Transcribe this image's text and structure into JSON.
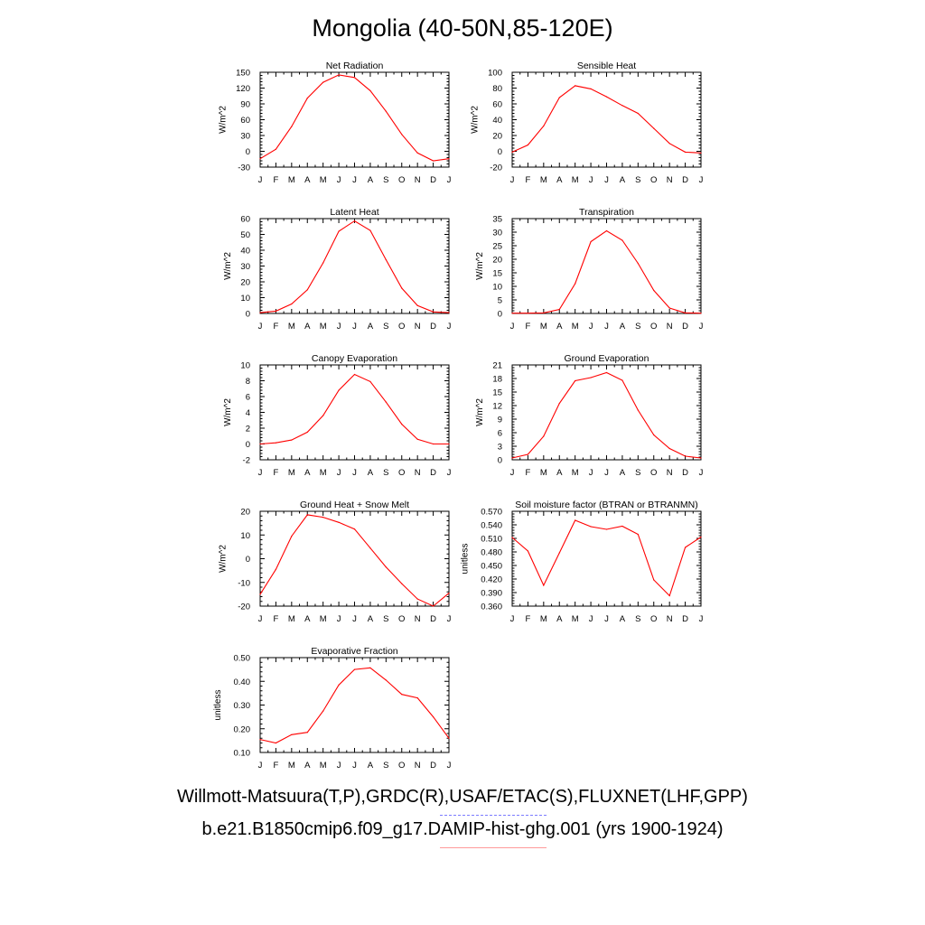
{
  "title": "Mongolia (40-50N,85-120E)",
  "legend": {
    "observations": "Willmott-Matsuura(T,P),GRDC(R),USAF/ETAC(S),FLUXNET(LHF,GPP)",
    "model": "b.e21.B1850cmip6.f09_g17.DAMIP-hist-ghg.001 (yrs 1900-1924)",
    "observations_color": "#7b7bff",
    "model_color": "#ff0000"
  },
  "chart_data": [
    {
      "type": "line",
      "title": "Net Radiation",
      "ylabel": "W/m^2",
      "categories": [
        "J",
        "F",
        "M",
        "A",
        "M",
        "J",
        "J",
        "A",
        "S",
        "O",
        "N",
        "D",
        "J"
      ],
      "yticks": [
        "150",
        "120",
        "90",
        "60",
        "30",
        "0",
        "-30"
      ],
      "ylim": [
        -30,
        150
      ],
      "series": [
        {
          "values": [
            -14,
            4,
            47,
            101,
            131,
            145,
            140,
            115,
            76,
            32,
            -3,
            -18,
            -14
          ]
        }
      ]
    },
    {
      "type": "line",
      "title": "Sensible Heat",
      "ylabel": "W/m^2",
      "categories": [
        "J",
        "F",
        "M",
        "A",
        "M",
        "J",
        "J",
        "A",
        "S",
        "O",
        "N",
        "D",
        "J"
      ],
      "yticks": [
        "100",
        "80",
        "60",
        "40",
        "20",
        "0",
        "-20"
      ],
      "ylim": [
        -20,
        100
      ],
      "series": [
        {
          "values": [
            -1,
            8,
            32,
            68,
            83,
            79,
            69,
            58,
            48,
            29,
            10,
            -1,
            -2
          ]
        }
      ]
    },
    {
      "type": "line",
      "title": "Latent Heat",
      "ylabel": "W/m^2",
      "categories": [
        "J",
        "F",
        "M",
        "A",
        "M",
        "J",
        "J",
        "A",
        "S",
        "O",
        "N",
        "D",
        "J"
      ],
      "yticks": [
        "60",
        "50",
        "40",
        "30",
        "20",
        "10",
        "0"
      ],
      "ylim": [
        0,
        60
      ],
      "series": [
        {
          "values": [
            0.5,
            1.5,
            6,
            15,
            32,
            52,
            58.5,
            52.5,
            34,
            16,
            5,
            1,
            0.5
          ]
        }
      ]
    },
    {
      "type": "line",
      "title": "Transpiration",
      "ylabel": "W/m^2",
      "categories": [
        "J",
        "F",
        "M",
        "A",
        "M",
        "J",
        "J",
        "A",
        "S",
        "O",
        "N",
        "D",
        "J"
      ],
      "yticks": [
        "35",
        "30",
        "25",
        "20",
        "15",
        "10",
        "5",
        "0"
      ],
      "ylim": [
        0,
        35
      ],
      "series": [
        {
          "values": [
            0.1,
            0.1,
            0.2,
            1.5,
            11,
            26.5,
            30.5,
            27,
            18.5,
            8.5,
            2,
            0.2,
            0.1
          ]
        }
      ]
    },
    {
      "type": "line",
      "title": "Canopy Evaporation",
      "ylabel": "W/m^2",
      "categories": [
        "J",
        "F",
        "M",
        "A",
        "M",
        "J",
        "J",
        "A",
        "S",
        "O",
        "N",
        "D",
        "J"
      ],
      "yticks": [
        "10",
        "8",
        "6",
        "4",
        "2",
        "0",
        "-2"
      ],
      "ylim": [
        -2,
        10
      ],
      "series": [
        {
          "values": [
            0,
            0.15,
            0.5,
            1.5,
            3.6,
            6.8,
            8.8,
            7.9,
            5.3,
            2.5,
            0.6,
            0,
            0
          ]
        }
      ]
    },
    {
      "type": "line",
      "title": "Ground Evaporation",
      "ylabel": "W/m^2",
      "categories": [
        "J",
        "F",
        "M",
        "A",
        "M",
        "J",
        "J",
        "A",
        "S",
        "O",
        "N",
        "D",
        "J"
      ],
      "yticks": [
        "21",
        "18",
        "15",
        "12",
        "9",
        "6",
        "3",
        "0"
      ],
      "ylim": [
        0,
        21
      ],
      "series": [
        {
          "values": [
            0.4,
            1.2,
            5.2,
            12.5,
            17.5,
            18.2,
            19.3,
            17.6,
            11,
            5.5,
            2.5,
            0.8,
            0.4
          ]
        }
      ]
    },
    {
      "type": "line",
      "title": "Ground Heat + Snow Melt",
      "ylabel": "W/m^2",
      "categories": [
        "J",
        "F",
        "M",
        "A",
        "M",
        "J",
        "J",
        "A",
        "S",
        "O",
        "N",
        "D",
        "J"
      ],
      "yticks": [
        "20",
        "10",
        "0",
        "-10",
        "-20"
      ],
      "ylim": [
        -20,
        20
      ],
      "series": [
        {
          "values": [
            -15,
            -4.5,
            9.5,
            18.5,
            17.5,
            15.3,
            12.5,
            4.5,
            -3.5,
            -10.5,
            -17,
            -20,
            -14.5
          ]
        }
      ]
    },
    {
      "type": "line",
      "title": "Soil moisture factor (BTRAN or BTRANMN)",
      "ylabel": "unitless",
      "categories": [
        "J",
        "F",
        "M",
        "A",
        "M",
        "J",
        "J",
        "A",
        "S",
        "O",
        "N",
        "D",
        "J"
      ],
      "yticks": [
        "0.570",
        "0.540",
        "0.510",
        "0.480",
        "0.450",
        "0.420",
        "0.390",
        "0.360"
      ],
      "ylim": [
        0.36,
        0.57
      ],
      "series": [
        {
          "values": [
            0.512,
            0.482,
            0.406,
            0.478,
            0.55,
            0.536,
            0.53,
            0.537,
            0.519,
            0.418,
            0.383,
            0.49,
            0.513
          ]
        }
      ]
    },
    {
      "type": "line",
      "title": "Evaporative Fraction",
      "ylabel": "unitless",
      "categories": [
        "J",
        "F",
        "M",
        "A",
        "M",
        "J",
        "J",
        "A",
        "S",
        "O",
        "N",
        "D",
        "J"
      ],
      "yticks": [
        "0.50",
        "0.40",
        "0.30",
        "0.20",
        "0.10"
      ],
      "ylim": [
        0.1,
        0.5
      ],
      "series": [
        {
          "values": [
            0.155,
            0.14,
            0.175,
            0.185,
            0.275,
            0.385,
            0.45,
            0.457,
            0.405,
            0.345,
            0.33,
            0.25,
            0.16
          ]
        }
      ]
    }
  ]
}
